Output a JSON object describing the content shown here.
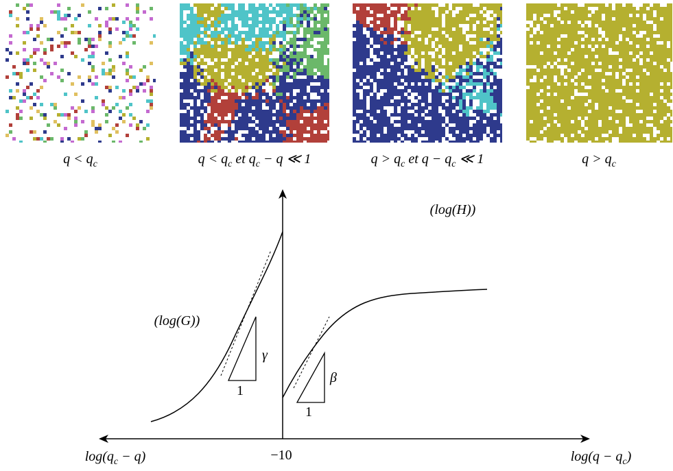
{
  "panels": [
    {
      "caption": [
        {
          "text": "q < q"
        },
        {
          "sub": "c"
        }
      ]
    },
    {
      "caption": [
        {
          "text": "q < q"
        },
        {
          "sub": "c"
        },
        {
          "text": " et q"
        },
        {
          "sub": "c"
        },
        {
          "text": " − q ≪ 1"
        }
      ]
    },
    {
      "caption": [
        {
          "text": "q > q"
        },
        {
          "sub": "c"
        },
        {
          "text": " et q − q"
        },
        {
          "sub": "c"
        },
        {
          "text": " ≪ 1"
        }
      ]
    },
    {
      "caption": [
        {
          "text": "q > q"
        },
        {
          "sub": "c"
        }
      ]
    }
  ],
  "graph": {
    "h_label": [
      {
        "text": "(log(H))"
      }
    ],
    "g_label": [
      {
        "text": "(log(G))"
      }
    ],
    "gamma": [
      {
        "text": "γ"
      }
    ],
    "gamma_base": [
      {
        "text": "1"
      }
    ],
    "beta": [
      {
        "text": "β"
      }
    ],
    "beta_base": [
      {
        "text": "1"
      }
    ],
    "x_left_label": [
      {
        "text": "log(q"
      },
      {
        "sub": "c"
      },
      {
        "text": " − q)"
      }
    ],
    "x_center_label": [
      {
        "text": "−10"
      }
    ],
    "x_right_label": [
      {
        "text": "log(q − q"
      },
      {
        "sub": "c"
      },
      {
        "text": ")"
      }
    ]
  }
}
